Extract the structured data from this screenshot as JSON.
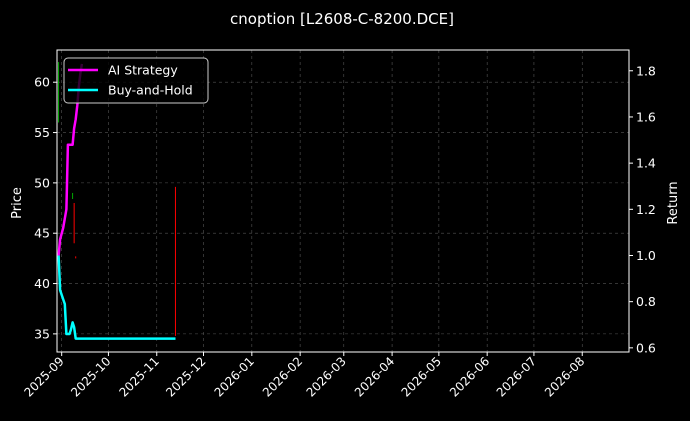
{
  "chart_data": {
    "type": "line",
    "title": "cnoption [L2608-C-8200.DCE]",
    "xlabel": "",
    "ylabel": "Price",
    "ylabel_right": "Return",
    "x_ticks": [
      "2025-09",
      "2025-10",
      "2025-11",
      "2025-12",
      "2026-01",
      "2026-02",
      "2026-03",
      "2026-04",
      "2026-05",
      "2026-06",
      "2026-07",
      "2026-08"
    ],
    "xlim": [
      "2025-08-29",
      "2026-08-31"
    ],
    "ylim": [
      33.2,
      63.2
    ],
    "yticks": [
      35,
      40,
      45,
      50,
      55,
      60
    ],
    "ylim_right": [
      0.582,
      1.89
    ],
    "yticks_right": [
      0.6,
      0.8,
      1.0,
      1.2,
      1.4,
      1.6,
      1.8
    ],
    "grid": true,
    "legend": {
      "position": "top-left",
      "entries": [
        "AI Strategy",
        "Buy-and-Hold"
      ]
    },
    "colors": {
      "background": "#000000",
      "ai_strategy": "#ff00ff",
      "buy_and_hold": "#00ffff",
      "candle_up": "#00aa00",
      "candle_down": "#ff0000",
      "grid": "#555555",
      "text": "#ffffff"
    },
    "series": [
      {
        "name": "AI Strategy",
        "axis": "right",
        "points": [
          [
            "2025-08-30",
            1.0
          ],
          [
            "2025-08-31",
            1.07
          ],
          [
            "2025-09-02",
            1.12
          ],
          [
            "2025-09-04",
            1.2
          ],
          [
            "2025-09-05",
            1.48
          ],
          [
            "2025-09-06",
            1.48
          ],
          [
            "2025-09-08",
            1.48
          ],
          [
            "2025-09-09",
            1.55
          ],
          [
            "2025-09-10",
            1.59
          ],
          [
            "2025-09-11",
            1.65
          ],
          [
            "2025-09-12",
            1.73
          ],
          [
            "2025-09-13",
            1.79
          ],
          [
            "2025-09-14",
            1.83
          ]
        ]
      },
      {
        "name": "Buy-and-Hold",
        "axis": "right",
        "points": [
          [
            "2025-08-30",
            1.0
          ],
          [
            "2025-08-31",
            0.85
          ],
          [
            "2025-09-02",
            0.81
          ],
          [
            "2025-09-03",
            0.79
          ],
          [
            "2025-09-04",
            0.66
          ],
          [
            "2025-09-05",
            0.66
          ],
          [
            "2025-09-06",
            0.66
          ],
          [
            "2025-09-07",
            0.68
          ],
          [
            "2025-09-08",
            0.71
          ],
          [
            "2025-09-09",
            0.69
          ],
          [
            "2025-09-10",
            0.64
          ],
          [
            "2025-11-13",
            0.64
          ]
        ]
      }
    ],
    "candles": [
      {
        "date": "2025-08-30",
        "low": 56.0,
        "high": 62.0,
        "dir": "up"
      },
      {
        "date": "2025-09-08",
        "low": 48.4,
        "high": 49.0,
        "dir": "up"
      },
      {
        "date": "2025-09-09",
        "low": 44.0,
        "high": 48.0,
        "dir": "down"
      },
      {
        "date": "2025-09-10",
        "low": 42.5,
        "high": 42.7,
        "dir": "down"
      },
      {
        "date": "2025-11-13",
        "low": 34.8,
        "high": 49.6,
        "dir": "down"
      }
    ]
  }
}
